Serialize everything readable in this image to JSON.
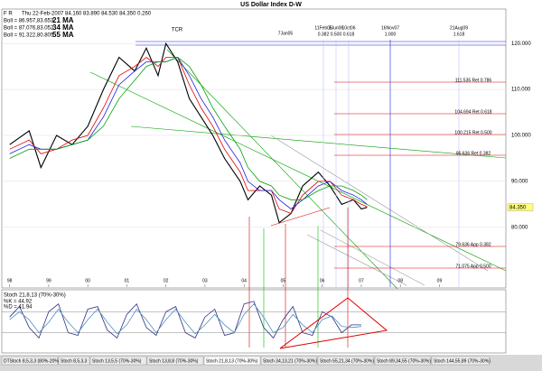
{
  "header": {
    "flags": "F R",
    "quote": "Thu 22-Feb-2007  84.160  83.890  84.530  84.350  0.260"
  },
  "chart_data": [
    {
      "type": "line",
      "title": "US Dollar Index  D-W",
      "x": [
        1998.0,
        1998.5,
        1998.8,
        1999.2,
        1999.6,
        2000.0,
        2000.4,
        2000.8,
        2001.2,
        2001.5,
        2001.8,
        2002.0,
        2002.3,
        2002.6,
        2002.9,
        2003.2,
        2003.5,
        2003.9,
        2004.1,
        2004.4,
        2004.7,
        2004.9,
        2005.2,
        2005.5,
        2005.9,
        2006.2,
        2006.5,
        2006.8,
        2007.0,
        2007.15
      ],
      "series": [
        {
          "color": "#000000",
          "values": [
            98,
            101,
            93,
            100,
            98,
            102,
            110,
            117,
            114,
            119,
            113,
            120,
            116,
            108,
            104,
            100,
            95,
            90,
            86,
            89,
            87,
            81,
            83,
            89,
            92,
            89,
            85,
            86,
            84,
            84.35
          ]
        },
        {
          "name": "21 MA",
          "boll": "Boll = 86.957,83.653",
          "color": "#e00000",
          "values": [
            97,
            99,
            96,
            97,
            99,
            100,
            106,
            113,
            115,
            117,
            115,
            117,
            117,
            111,
            106,
            102,
            97,
            92,
            88,
            88,
            88,
            84,
            83,
            87,
            90,
            90,
            87,
            86,
            85,
            84.5
          ]
        },
        {
          "name": "34 MA",
          "boll": "Boll = 87.076,83.052",
          "color": "#2020e0",
          "values": [
            96,
            98,
            97,
            97,
            98,
            99,
            104,
            111,
            114,
            116,
            116,
            116,
            117,
            113,
            108,
            104,
            99,
            94,
            90,
            88,
            88,
            86,
            84,
            86,
            89,
            90,
            88,
            87,
            86,
            85
          ]
        },
        {
          "name": "55 MA",
          "boll": "Boll = 91.322,80.805",
          "color": "#00a000",
          "values": [
            95,
            97,
            97,
            97,
            98,
            99,
            102,
            108,
            112,
            115,
            116,
            116,
            117,
            115,
            111,
            106,
            102,
            97,
            93,
            90,
            89,
            87,
            86,
            86,
            88,
            89,
            89,
            88,
            87,
            86
          ]
        }
      ],
      "last_price": {
        "value": 84.35,
        "label": "84.350"
      },
      "xlim": [
        1997.8,
        2010.7
      ],
      "ylim": [
        67,
        127.5
      ],
      "xticks": [
        {
          "value": 1998,
          "label": "98"
        },
        {
          "value": 1999,
          "label": "99"
        },
        {
          "value": 2000,
          "label": "00"
        },
        {
          "value": 2001,
          "label": "01"
        },
        {
          "value": 2002,
          "label": "02"
        },
        {
          "value": 2003,
          "label": "03"
        },
        {
          "value": 2004,
          "label": "04"
        },
        {
          "value": 2005,
          "label": "05"
        },
        {
          "value": 2006,
          "label": "06"
        },
        {
          "value": 2007,
          "label": "07"
        },
        {
          "value": 2008,
          "label": "08"
        },
        {
          "value": 2009,
          "label": "09"
        }
      ],
      "yticks": [
        {
          "value": 80,
          "label": "80.000"
        },
        {
          "value": 90,
          "label": "90.000"
        },
        {
          "value": 100,
          "label": "100.000"
        },
        {
          "value": 110,
          "label": "110.000"
        },
        {
          "value": 120,
          "label": "120.000"
        }
      ],
      "annotations": {
        "peak": "TCR",
        "low": "7Jan05",
        "dates": [
          {
            "date": "11Feb05",
            "ratio": "0.382"
          },
          {
            "date": "3Jun06",
            "ratio": "0.500"
          },
          {
            "date": "10ct06",
            "ratio": "0.618"
          },
          {
            "date": "16Nov07",
            "ratio": "1.000"
          },
          {
            "date": "21Aug09",
            "ratio": "1.618"
          }
        ],
        "levels": [
          "111.535 Ret 0.786",
          "104.694 Ret 0.618",
          "100.215 Ret 0.500",
          "95.636 Ret 0.382",
          "79.636 App 0.382",
          "71.075 App 0.500"
        ]
      }
    },
    {
      "type": "line",
      "title": "Stoch 21,8,13 (70%-30%)",
      "x": [
        1998.0,
        1998.25,
        1998.5,
        1998.75,
        1999.0,
        1999.25,
        1999.5,
        1999.75,
        2000.0,
        2000.25,
        2000.5,
        2000.75,
        2001.0,
        2001.25,
        2001.5,
        2001.75,
        2002.0,
        2002.25,
        2002.5,
        2002.75,
        2003.0,
        2003.25,
        2003.5,
        2003.75,
        2004.0,
        2004.25,
        2004.5,
        2004.75,
        2005.0,
        2005.25,
        2005.5,
        2005.75,
        2006.0,
        2006.25,
        2006.5,
        2006.75,
        2007.0
      ],
      "series": [
        {
          "name": "%K = 44.92",
          "color": "#303080",
          "values": [
            60,
            80,
            40,
            20,
            70,
            85,
            30,
            25,
            75,
            80,
            35,
            20,
            65,
            85,
            40,
            25,
            70,
            80,
            30,
            20,
            60,
            75,
            25,
            30,
            85,
            90,
            40,
            20,
            55,
            80,
            30,
            25,
            70,
            60,
            30,
            45,
            44.92
          ]
        },
        {
          "name": "%D = 41.94",
          "color": "#5090c0",
          "values": [
            55,
            70,
            55,
            30,
            50,
            75,
            50,
            30,
            55,
            75,
            50,
            28,
            45,
            75,
            55,
            30,
            55,
            75,
            50,
            28,
            45,
            65,
            45,
            30,
            65,
            85,
            60,
            30,
            40,
            65,
            45,
            30,
            55,
            62,
            42,
            40,
            41.94
          ]
        }
      ],
      "levels": [
        70,
        30
      ],
      "xlim": [
        1997.8,
        2010.7
      ],
      "ylim": [
        0,
        100
      ]
    }
  ],
  "tabs": [
    "DTStoch 8,5,3,3 (80%-20%)",
    "Stoch 8,5,3,3",
    "Stoch 13,5,5 (70%-30%)",
    "Stoch 13,8,8 (70%-30%)",
    "Stoch 21,8,13 (70%-30%)",
    "Stoch 34,13,21 (70%-30%)",
    "Stoch 55,21,34 (70%-30%)",
    "Stoch 89,34,55 (70%-30%)",
    "Stoch 144,55,89 (70%-30%)"
  ]
}
